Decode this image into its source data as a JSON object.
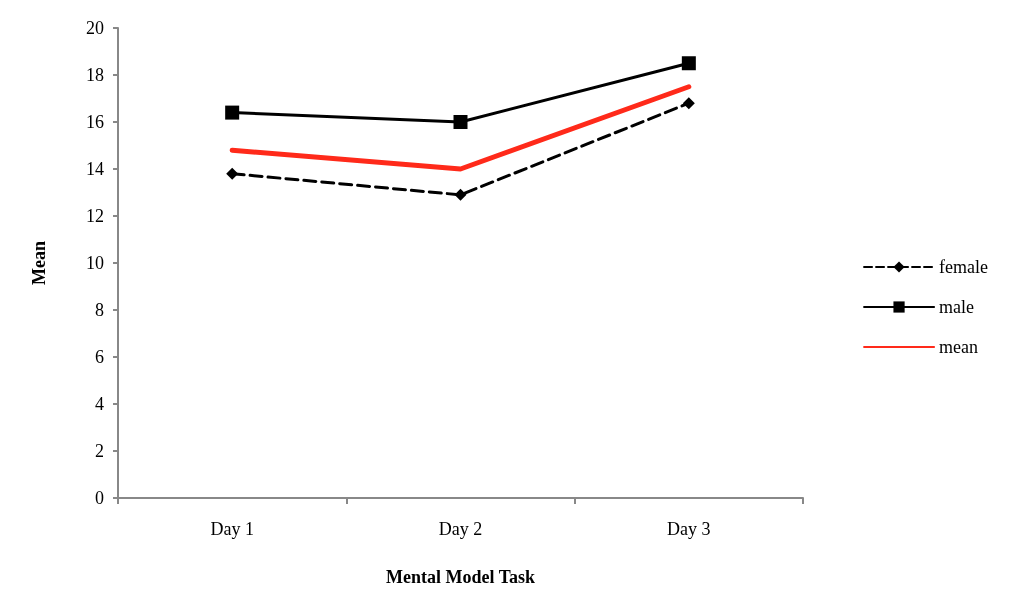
{
  "chart_data": {
    "type": "line",
    "xlabel": "Mental Model Task",
    "ylabel": "Mean",
    "categories": [
      "Day 1",
      "Day 2",
      "Day 3"
    ],
    "series": [
      {
        "name": "female",
        "color": "#000000",
        "values": [
          13.8,
          12.9,
          16.8
        ],
        "marker": "diamond",
        "line_style": "dashed"
      },
      {
        "name": "male",
        "color": "#000000",
        "values": [
          16.4,
          16.0,
          18.5
        ],
        "marker": "square",
        "line_style": "solid"
      },
      {
        "name": "mean",
        "color": "#ff2a1a",
        "values": [
          14.8,
          14.0,
          17.5
        ],
        "marker": "none",
        "line_style": "solid"
      }
    ],
    "ylim": [
      0,
      20
    ],
    "yticks": [
      0,
      2,
      4,
      6,
      8,
      10,
      12,
      14,
      16,
      18,
      20
    ],
    "grid": false,
    "legend": "right"
  }
}
